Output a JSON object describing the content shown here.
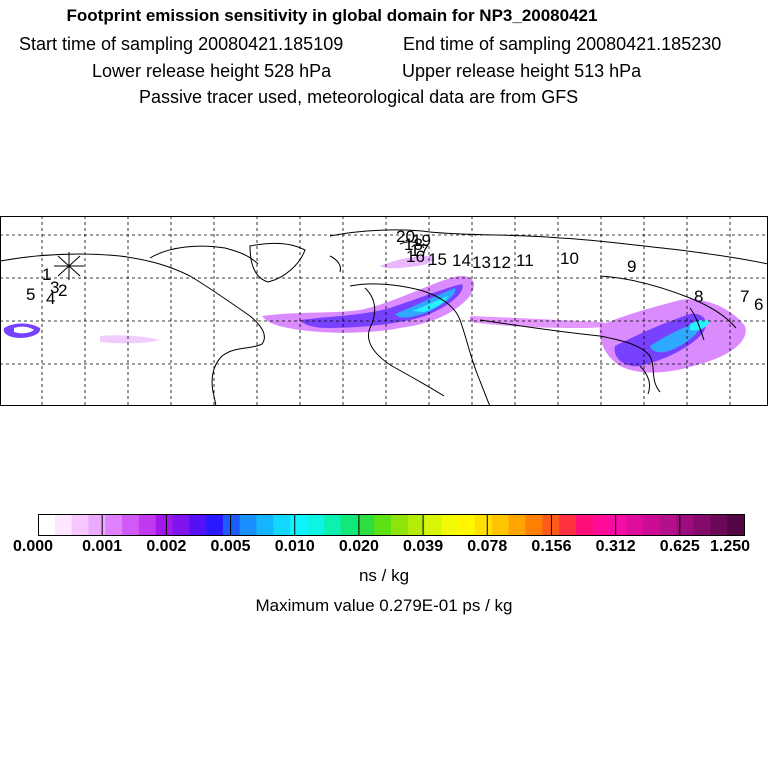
{
  "title": "Footprint emission sensitivity in global domain for NP3_20080421",
  "header": {
    "start_label": "Start time of sampling 20080421.185109",
    "end_label": "End time of sampling 20080421.185230",
    "lower_label": "Lower release height  528 hPa",
    "upper_label": "Upper release height  513 hPa",
    "tracer_note": "Passive tracer used, meteorological data are from GFS"
  },
  "map": {
    "point_labels": [
      "1",
      "2",
      "3",
      "4",
      "5",
      "6",
      "7",
      "8",
      "9",
      "10",
      "11",
      "12",
      "13",
      "14",
      "15",
      "16",
      "17",
      "18",
      "19",
      "20"
    ],
    "colors": {
      "land_outline": "#000000",
      "grid": "#000000"
    }
  },
  "colorbar": {
    "tick_labels": [
      "0.000",
      "0.001",
      "0.002",
      "0.005",
      "0.010",
      "0.020",
      "0.039",
      "0.078",
      "0.156",
      "0.312",
      "0.625",
      "1.250"
    ],
    "colors": [
      "#ffffff",
      "#fde6ff",
      "#f6c8ff",
      "#ecaaff",
      "#df80ff",
      "#d05af7",
      "#c038ef",
      "#a218ea",
      "#7f14ef",
      "#5610f5",
      "#2a18ff",
      "#1c5cff",
      "#1890ff",
      "#14b4ff",
      "#12d8ff",
      "#0ef4ff",
      "#0ef4e4",
      "#0cf0b0",
      "#10e87a",
      "#2ede3e",
      "#5ce212",
      "#8ce40a",
      "#b4ec08",
      "#d8f408",
      "#f2fa06",
      "#fff600",
      "#ffe000",
      "#ffc400",
      "#ffa400",
      "#ff8000",
      "#ff5c1c",
      "#ff3040",
      "#ff1078",
      "#ff0c98",
      "#f40ca4",
      "#e00c9c",
      "#cc0c94",
      "#b4108a",
      "#9c0c7c",
      "#840a6c",
      "#6c0858",
      "#540644"
    ],
    "units": "ns / kg",
    "max_value_text": "Maximum value  0.279E-01 ps / kg"
  }
}
